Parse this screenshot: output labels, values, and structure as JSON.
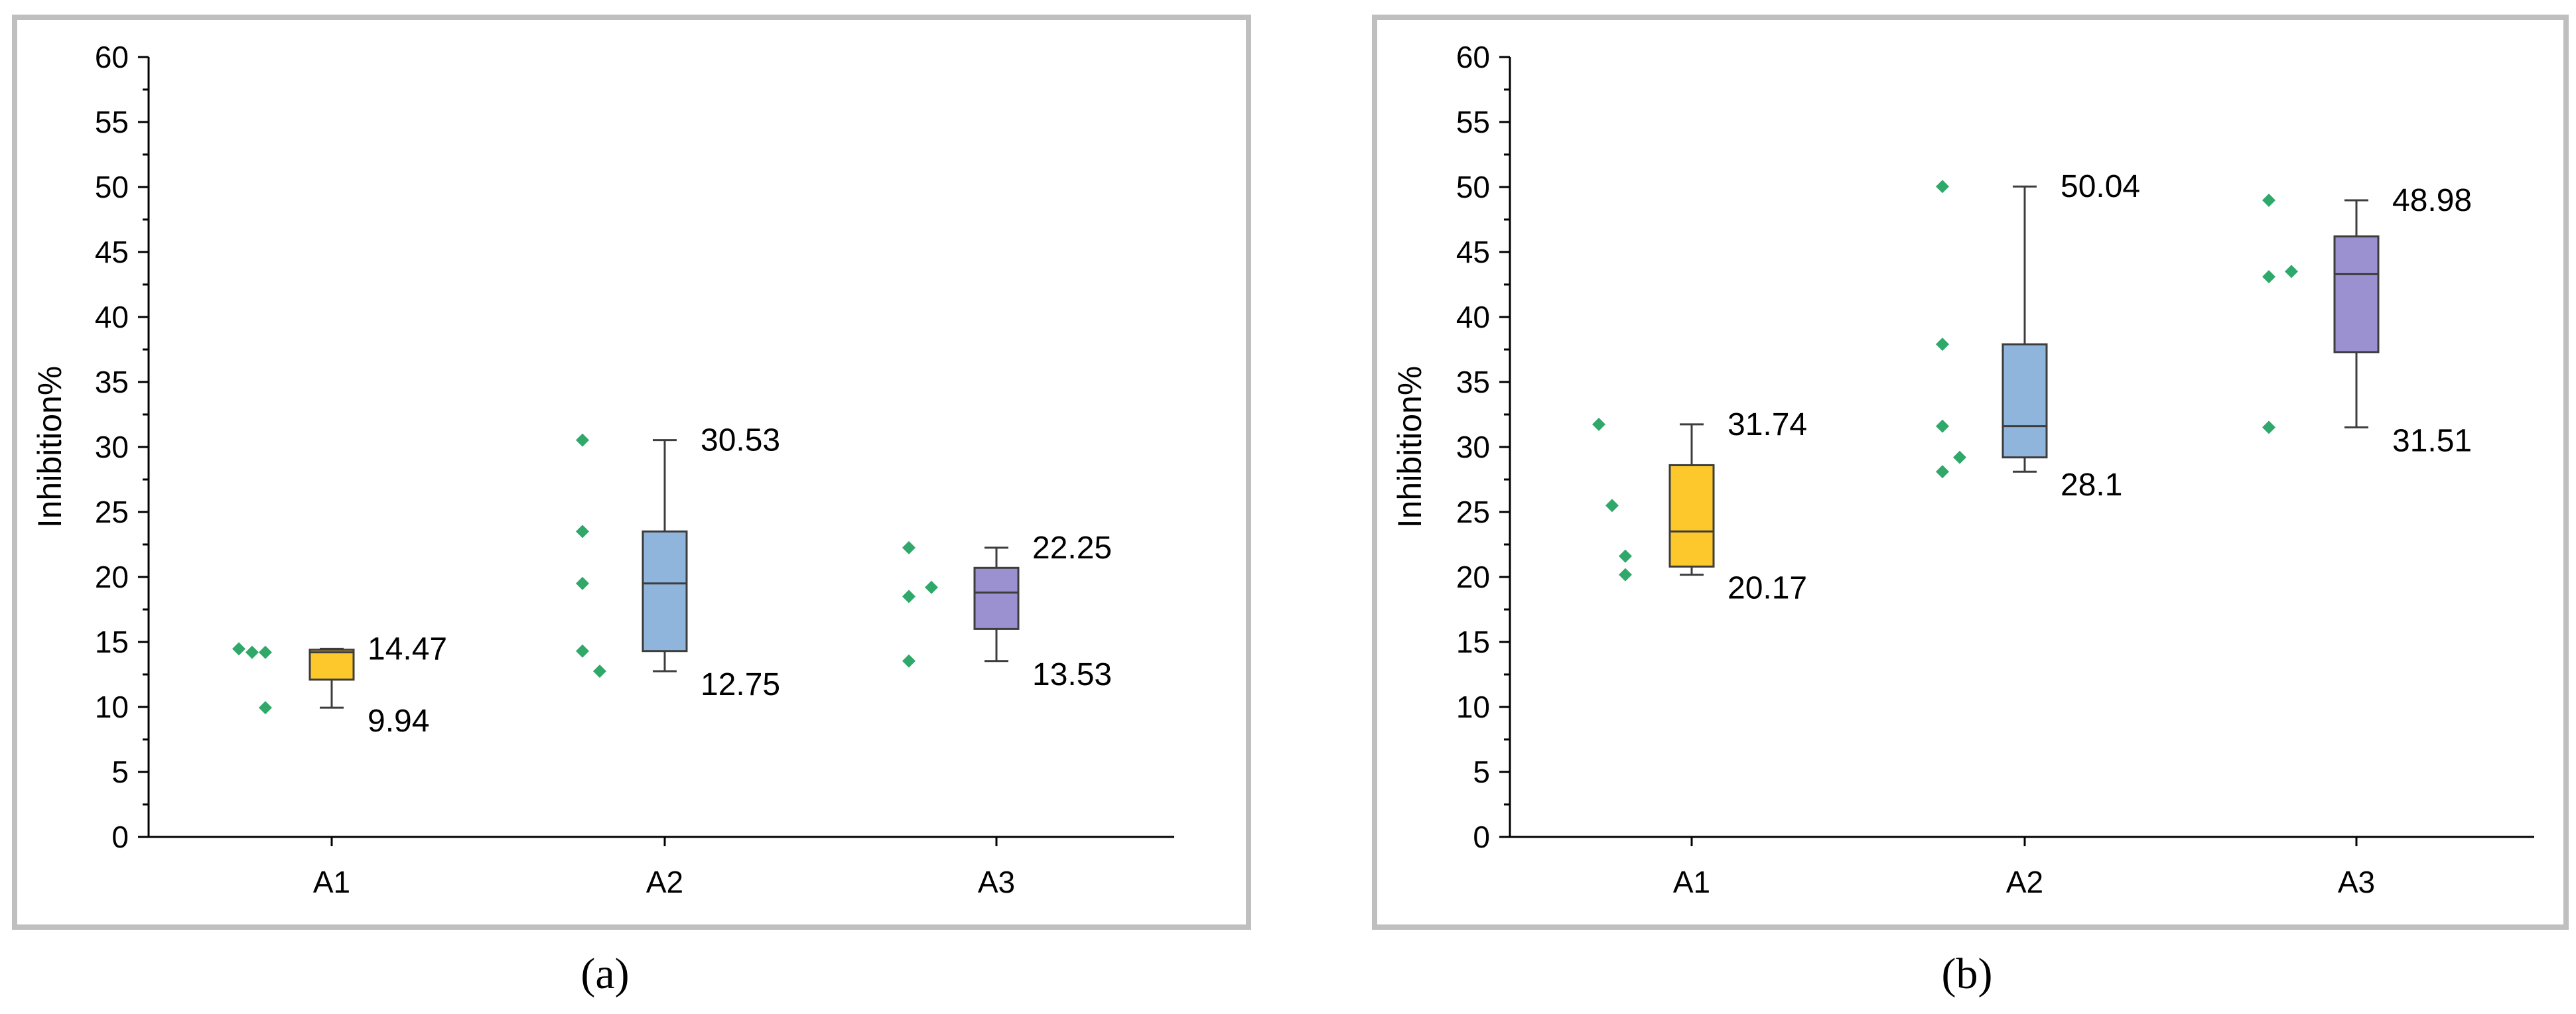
{
  "chart_data": [
    {
      "type": "box",
      "panel": "a",
      "caption": "(a)",
      "ylabel": "Inhibition%",
      "ylim": [
        0,
        60
      ],
      "yticks": [
        0,
        5,
        10,
        15,
        20,
        25,
        30,
        35,
        40,
        45,
        50,
        55,
        60
      ],
      "categories": [
        "A1",
        "A2",
        "A3"
      ],
      "boxes": [
        {
          "category": "A1",
          "color": "#fdc82c",
          "min": 9.94,
          "q1": 12.1,
          "median": 14.2,
          "q3": 14.4,
          "max": 14.47,
          "points": [
            14.47,
            14.2,
            14.2,
            9.94
          ],
          "labels": {
            "top": "14.47",
            "bottom": "9.94"
          }
        },
        {
          "category": "A2",
          "color": "#8fb5dc",
          "min": 12.75,
          "q1": 14.3,
          "median": 19.5,
          "q3": 23.5,
          "max": 30.53,
          "points": [
            30.53,
            23.5,
            19.5,
            14.3,
            12.75
          ],
          "labels": {
            "top": "30.53",
            "bottom": "12.75"
          }
        },
        {
          "category": "A3",
          "color": "#9b90d0",
          "min": 13.53,
          "q1": 16.0,
          "median": 18.8,
          "q3": 20.7,
          "max": 22.25,
          "points": [
            22.25,
            18.5,
            19.2,
            13.53
          ],
          "labels": {
            "top": "22.25",
            "bottom": "13.53"
          }
        }
      ]
    },
    {
      "type": "box",
      "panel": "b",
      "caption": "(b)",
      "ylabel": "Inhibition%",
      "ylim": [
        0,
        60
      ],
      "yticks": [
        0,
        5,
        10,
        15,
        20,
        25,
        30,
        35,
        40,
        45,
        50,
        55,
        60
      ],
      "categories": [
        "A1",
        "A2",
        "A3"
      ],
      "boxes": [
        {
          "category": "A1",
          "color": "#fdc82c",
          "min": 20.17,
          "q1": 20.8,
          "median": 23.5,
          "q3": 28.6,
          "max": 31.74,
          "points": [
            31.74,
            25.5,
            21.6,
            20.17
          ],
          "labels": {
            "top": "31.74",
            "bottom": "20.17"
          }
        },
        {
          "category": "A2",
          "color": "#8fb5dc",
          "min": 28.1,
          "q1": 29.2,
          "median": 31.6,
          "q3": 37.9,
          "max": 50.04,
          "points": [
            50.04,
            37.9,
            31.6,
            28.1,
            29.2
          ],
          "labels": {
            "top": "50.04",
            "bottom": "28.1"
          }
        },
        {
          "category": "A3",
          "color": "#9b90d0",
          "min": 31.51,
          "q1": 37.3,
          "median": 43.3,
          "q3": 46.2,
          "max": 48.98,
          "points": [
            48.98,
            43.1,
            43.5,
            31.51
          ],
          "labels": {
            "top": "48.98",
            "bottom": "31.51"
          }
        }
      ]
    }
  ],
  "point_color": "#2fa86a"
}
